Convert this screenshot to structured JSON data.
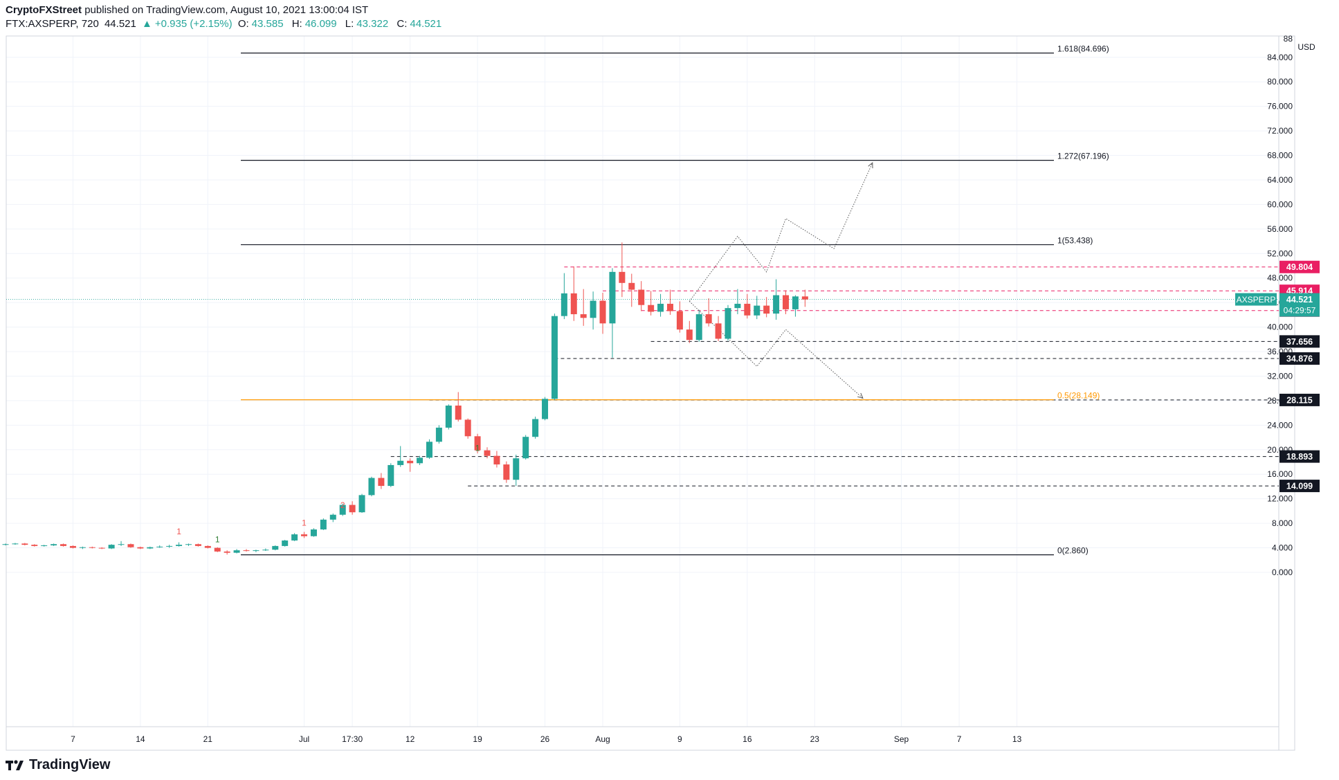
{
  "header": {
    "author": "CryptoFXStreet",
    "published_text": "published on TradingView.com, August 10, 2021 13:00:04 IST",
    "symbol": "FTX:AXSPERP, 720",
    "price": "44.521",
    "change": "+0.935 (+2.15%)",
    "open_label": "O:",
    "open": "43.585",
    "high_label": "H:",
    "high": "46.099",
    "low_label": "L:",
    "low": "43.322",
    "close_label": "C:",
    "close": "44.521"
  },
  "footer": {
    "brand": "TradingView"
  },
  "colors": {
    "up": "#26a69a",
    "down": "#ef5350",
    "fib_orange": "#ff9800",
    "red_level": "#e91e63",
    "black_level": "#131722",
    "grid": "#f0f3fa"
  },
  "chart_data": {
    "type": "candlestick",
    "currency": "USD",
    "ylim": [
      -2,
      88
    ],
    "y_ticks": [
      "0.000",
      "4.000",
      "8.000",
      "12.000",
      "16.000",
      "20.000",
      "24.000",
      "28.000",
      "32.000",
      "36.000",
      "40.000",
      "44.000",
      "48.000",
      "52.000",
      "56.000",
      "60.000",
      "64.000",
      "68.000",
      "72.000",
      "76.000",
      "80.000",
      "84.000",
      "88"
    ],
    "x_ticks": [
      {
        "label": "7",
        "day": 7
      },
      {
        "label": "14",
        "day": 14
      },
      {
        "label": "21",
        "day": 21
      },
      {
        "label": "Jul",
        "day": 31
      },
      {
        "label": "17:30",
        "day": 36
      },
      {
        "label": "12",
        "day": 42
      },
      {
        "label": "19",
        "day": 49
      },
      {
        "label": "26",
        "day": 56
      },
      {
        "label": "Aug",
        "day": 62
      },
      {
        "label": "9",
        "day": 70
      },
      {
        "label": "16",
        "day": 77
      },
      {
        "label": "23",
        "day": 84
      },
      {
        "label": "Sep",
        "day": 93
      },
      {
        "label": "7",
        "day": 99
      },
      {
        "label": "13",
        "day": 105
      }
    ],
    "fib_levels": [
      {
        "label": "1.618(84.696)",
        "value": 84.696,
        "style": "solid-black"
      },
      {
        "label": "1.272(67.196)",
        "value": 67.196,
        "style": "solid-black"
      },
      {
        "label": "1(53.438)",
        "value": 53.438,
        "style": "solid-black"
      },
      {
        "label": "0.5(28.149)",
        "value": 28.149,
        "style": "solid-orange"
      },
      {
        "label": "0(2.860)",
        "value": 2.86,
        "style": "solid-black"
      }
    ],
    "horizontal_levels": [
      {
        "label": "49.804",
        "value": 49.804,
        "style": "dashed-red",
        "start_day": 58
      },
      {
        "label": "45.914",
        "value": 45.914,
        "style": "dashed-red",
        "start_day": 62
      },
      {
        "label": "42.688",
        "value": 42.688,
        "style": "dashed-red",
        "start_day": 66
      },
      {
        "label": "37.656",
        "value": 37.656,
        "style": "dashed-black",
        "start_day": 67
      },
      {
        "label": "34.876",
        "value": 34.876,
        "style": "dashed-black",
        "start_day": 57
      },
      {
        "label": "28.115",
        "value": 28.115,
        "style": "dashed-black",
        "start_day": 44
      },
      {
        "label": "18.893",
        "value": 18.893,
        "style": "dashed-black",
        "start_day": 40
      },
      {
        "label": "14.099",
        "value": 14.099,
        "style": "dashed-black",
        "start_day": 48
      }
    ],
    "last_price": {
      "symbol": "AXSPERP",
      "value": "44.521",
      "countdown": "04:29:57"
    },
    "markers": [
      {
        "label": "1",
        "day": 18,
        "value": 6.2,
        "color": "red"
      },
      {
        "label": "1",
        "day": 22,
        "value": 4.9,
        "color": "green"
      },
      {
        "label": "1",
        "day": 31,
        "value": 7.6,
        "color": "red"
      },
      {
        "label": "2",
        "day": 35,
        "value": 10.5,
        "color": "red"
      },
      {
        "label": "1",
        "day": 49,
        "value": 19.8,
        "color": "green"
      }
    ],
    "projection_up": [
      [
        71,
        44.2
      ],
      [
        76,
        54.8
      ],
      [
        79,
        49
      ],
      [
        81,
        57.7
      ],
      [
        86,
        52.8
      ],
      [
        90,
        66.8
      ]
    ],
    "projection_down": [
      [
        71,
        44.2
      ],
      [
        78,
        33.6
      ],
      [
        81,
        39.6
      ],
      [
        89,
        28.4
      ]
    ],
    "candles": [
      [
        4.6,
        4.7,
        4.4,
        4.6
      ],
      [
        4.6,
        4.8,
        4.5,
        4.7
      ],
      [
        4.7,
        4.8,
        4.4,
        4.5
      ],
      [
        4.5,
        4.6,
        4.2,
        4.3
      ],
      [
        4.3,
        4.5,
        4.2,
        4.4
      ],
      [
        4.4,
        4.7,
        4.3,
        4.6
      ],
      [
        4.6,
        4.7,
        4.2,
        4.3
      ],
      [
        4.3,
        4.4,
        3.9,
        4.0
      ],
      [
        4.0,
        4.2,
        3.8,
        4.1
      ],
      [
        4.1,
        4.2,
        3.9,
        4.0
      ],
      [
        4.0,
        4.1,
        3.8,
        3.9
      ],
      [
        3.9,
        4.6,
        3.8,
        4.5
      ],
      [
        4.5,
        5.1,
        4.3,
        4.6
      ],
      [
        4.6,
        4.7,
        4.0,
        4.1
      ],
      [
        4.1,
        4.2,
        3.8,
        3.9
      ],
      [
        3.9,
        4.2,
        3.8,
        4.1
      ],
      [
        4.1,
        4.4,
        4.0,
        4.2
      ],
      [
        4.2,
        4.5,
        4.0,
        4.3
      ],
      [
        4.3,
        4.9,
        4.2,
        4.5
      ],
      [
        4.5,
        4.7,
        4.3,
        4.6
      ],
      [
        4.6,
        4.7,
        4.2,
        4.3
      ],
      [
        4.3,
        4.4,
        3.9,
        4.0
      ],
      [
        4.0,
        4.1,
        3.3,
        3.4
      ],
      [
        3.4,
        3.6,
        2.9,
        3.2
      ],
      [
        3.2,
        3.8,
        3.1,
        3.6
      ],
      [
        3.6,
        3.8,
        3.4,
        3.5
      ],
      [
        3.5,
        3.7,
        3.3,
        3.6
      ],
      [
        3.6,
        3.9,
        3.5,
        3.7
      ],
      [
        3.7,
        4.4,
        3.6,
        4.3
      ],
      [
        4.3,
        5.3,
        4.2,
        5.2
      ],
      [
        5.2,
        6.4,
        5.1,
        6.2
      ],
      [
        6.2,
        6.6,
        5.6,
        5.9
      ],
      [
        5.9,
        7.2,
        5.8,
        7.0
      ],
      [
        7.0,
        8.8,
        6.9,
        8.6
      ],
      [
        8.6,
        9.6,
        8.2,
        9.4
      ],
      [
        9.4,
        11.2,
        9.2,
        11.0
      ],
      [
        11.0,
        11.6,
        9.4,
        9.8
      ],
      [
        9.8,
        12.8,
        9.7,
        12.6
      ],
      [
        12.6,
        15.6,
        12.4,
        15.4
      ],
      [
        15.4,
        16.2,
        13.6,
        14.1
      ],
      [
        14.1,
        17.8,
        13.9,
        17.5
      ],
      [
        17.5,
        20.6,
        17.2,
        18.2
      ],
      [
        18.2,
        18.6,
        16.4,
        17.8
      ],
      [
        17.8,
        19.0,
        17.5,
        18.7
      ],
      [
        18.7,
        21.7,
        18.5,
        21.3
      ],
      [
        21.3,
        24.0,
        21.0,
        23.6
      ],
      [
        23.6,
        27.4,
        23.3,
        27.2
      ],
      [
        27.2,
        29.4,
        24.6,
        24.9
      ],
      [
        24.9,
        25.1,
        21.8,
        22.2
      ],
      [
        22.2,
        22.6,
        19.4,
        19.9
      ],
      [
        19.9,
        20.4,
        18.6,
        19.0
      ],
      [
        19.0,
        19.8,
        17.1,
        17.6
      ],
      [
        17.6,
        18.1,
        14.6,
        15.1
      ],
      [
        15.1,
        19.2,
        14.1,
        18.6
      ],
      [
        18.6,
        22.4,
        18.4,
        22.1
      ],
      [
        22.1,
        25.4,
        21.8,
        25.0
      ],
      [
        25.0,
        28.6,
        24.8,
        28.3
      ],
      [
        28.3,
        42.2,
        28.1,
        41.8
      ],
      [
        41.8,
        48.8,
        41.3,
        45.5
      ],
      [
        45.5,
        49.9,
        41.0,
        42.1
      ],
      [
        42.1,
        46.2,
        40.2,
        41.5
      ],
      [
        41.5,
        45.8,
        39.6,
        44.3
      ],
      [
        44.3,
        45.6,
        38.9,
        40.6
      ],
      [
        40.6,
        49.6,
        35.0,
        49.0
      ],
      [
        49.0,
        53.8,
        44.9,
        47.2
      ],
      [
        47.2,
        48.7,
        43.3,
        46.1
      ],
      [
        46.1,
        47.5,
        42.6,
        43.6
      ],
      [
        43.6,
        45.9,
        41.9,
        42.5
      ],
      [
        42.5,
        45.4,
        41.7,
        43.8
      ],
      [
        43.8,
        46.1,
        42.0,
        42.6
      ],
      [
        42.6,
        44.2,
        39.1,
        39.6
      ],
      [
        39.6,
        41.0,
        37.4,
        37.9
      ],
      [
        37.9,
        42.8,
        37.6,
        42.1
      ],
      [
        42.1,
        44.7,
        40.1,
        40.6
      ],
      [
        40.6,
        41.8,
        37.7,
        38.1
      ],
      [
        38.1,
        43.6,
        37.8,
        43.1
      ],
      [
        43.1,
        46.2,
        42.1,
        43.8
      ],
      [
        43.8,
        45.4,
        41.4,
        41.9
      ],
      [
        41.9,
        45.1,
        41.3,
        43.5
      ],
      [
        43.5,
        44.9,
        41.6,
        42.2
      ],
      [
        42.2,
        47.8,
        41.2,
        45.2
      ],
      [
        45.2,
        46.0,
        42.1,
        42.9
      ],
      [
        42.9,
        45.2,
        41.7,
        45.0
      ],
      [
        45.0,
        46.1,
        43.3,
        44.5
      ]
    ]
  }
}
